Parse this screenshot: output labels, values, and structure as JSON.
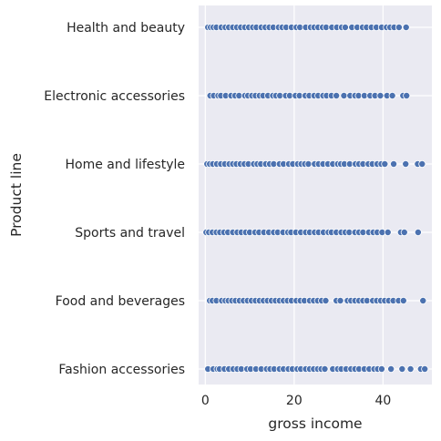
{
  "chart_data": {
    "type": "scatter",
    "title": "",
    "xlabel": "gross income",
    "ylabel": "Product line",
    "xlim": [
      -1.5,
      51.0
    ],
    "x_ticks": [
      0,
      20,
      40
    ],
    "grid": true,
    "categories": [
      "Health and beauty",
      "Electronic accessories",
      "Home and lifestyle",
      "Sports and travel",
      "Food and beverages",
      "Fashion accessories"
    ],
    "series": [
      {
        "category": "Health and beauty",
        "x": [
          0.6,
          1.2,
          1.8,
          2.5,
          3.6,
          4.5,
          5.3,
          6.2,
          7.1,
          8.0,
          8.9,
          9.8,
          10.7,
          11.5,
          12.6,
          13.5,
          14.4,
          15.3,
          16.5,
          17.3,
          18.2,
          19.4,
          20.5,
          21.3,
          22.6,
          23.7,
          24.5,
          25.4,
          26.4,
          27.2,
          28.5,
          29.6,
          30.7,
          31.5,
          33.0,
          34.2,
          35.4,
          36.3,
          37.4,
          38.5,
          39.7,
          40.8,
          41.6,
          42.5,
          43.6,
          45.2
        ]
      },
      {
        "category": "Electronic accessories",
        "x": [
          1.1,
          1.9,
          2.9,
          3.5,
          4.6,
          5.8,
          6.7,
          7.6,
          8.9,
          9.6,
          10.5,
          11.3,
          12.2,
          13.0,
          14.1,
          15.2,
          15.9,
          16.8,
          18.1,
          19.0,
          20.3,
          21.2,
          22.5,
          23.4,
          24.5,
          25.4,
          26.5,
          27.3,
          28.4,
          29.5,
          31.2,
          32.6,
          33.7,
          34.5,
          35.8,
          37.1,
          38.2,
          39.4,
          40.9,
          42.1,
          44.5,
          45.3
        ]
      },
      {
        "category": "Home and lifestyle",
        "x": [
          0.4,
          1.0,
          1.7,
          2.6,
          3.5,
          4.4,
          5.4,
          6.2,
          7.0,
          7.9,
          8.8,
          9.7,
          10.9,
          11.7,
          12.5,
          13.6,
          14.5,
          15.4,
          16.7,
          17.6,
          18.8,
          19.7,
          20.8,
          21.6,
          22.4,
          23.2,
          24.6,
          25.5,
          26.5,
          27.6,
          28.7,
          29.8,
          30.5,
          31.3,
          32.5,
          33.8,
          34.6,
          35.5,
          36.7,
          37.6,
          38.7,
          39.6,
          40.4,
          42.4,
          45.1,
          47.8,
          48.8
        ]
      },
      {
        "category": "Sports and travel",
        "x": [
          0.2,
          0.8,
          1.6,
          2.5,
          3.3,
          4.2,
          5.1,
          6.2,
          7.2,
          8.1,
          9.1,
          10.0,
          11.2,
          12.1,
          13.2,
          14.3,
          15.4,
          16.3,
          17.5,
          18.6,
          19.3,
          20.4,
          21.5,
          22.6,
          23.5,
          24.6,
          25.5,
          26.6,
          27.7,
          28.4,
          29.5,
          30.6,
          31.5,
          32.4,
          33.7,
          34.6,
          35.5,
          36.8,
          37.8,
          38.7,
          39.8,
          41.1,
          44.0,
          44.8,
          47.9
        ]
      },
      {
        "category": "Food and beverages",
        "x": [
          1.0,
          1.6,
          2.5,
          3.7,
          4.5,
          5.2,
          6.0,
          6.8,
          7.7,
          8.6,
          9.5,
          10.4,
          11.3,
          12.2,
          13.1,
          14.0,
          14.9,
          15.8,
          16.7,
          17.6,
          18.5,
          19.4,
          20.5,
          21.4,
          22.3,
          23.5,
          24.4,
          25.3,
          26.2,
          27.1,
          29.5,
          30.4,
          32.0,
          32.8,
          33.7,
          34.6,
          35.5,
          36.4,
          37.7,
          38.6,
          39.5,
          40.4,
          41.3,
          42.3,
          43.5,
          44.6,
          49.0
        ]
      },
      {
        "category": "Fashion accessories",
        "x": [
          0.6,
          1.8,
          2.7,
          3.2,
          4.3,
          5.3,
          6.3,
          7.2,
          8.1,
          9.4,
          10.2,
          11.4,
          12.6,
          13.8,
          14.6,
          15.5,
          16.7,
          17.6,
          18.7,
          19.6,
          20.7,
          21.5,
          22.6,
          23.5,
          24.4,
          25.3,
          26.1,
          26.9,
          28.7,
          29.8,
          30.6,
          31.7,
          32.8,
          33.7,
          34.6,
          35.8,
          36.9,
          38.0,
          38.8,
          39.7,
          41.8,
          44.3,
          46.2,
          48.5,
          49.4
        ]
      }
    ],
    "marker_color": "#4c72b0",
    "plot_background": "#eaeaf2",
    "grid_color": "#ffffff"
  }
}
